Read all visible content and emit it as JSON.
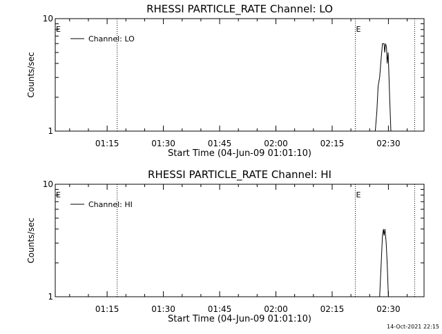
{
  "footer": {
    "timestamp": "14-Oct-2021 22:15"
  },
  "chart_data": [
    {
      "type": "line",
      "title": "RHESSI PARTICLE_RATE Channel: LO",
      "xlabel": "Start Time (04-Jun-09 01:01:10)",
      "ylabel": "Counts/sec",
      "y_scale": "log",
      "ylim": [
        1,
        10
      ],
      "xlim": [
        "01:01:10",
        "02:39:30"
      ],
      "x_ticks": [
        "01:15",
        "01:30",
        "01:45",
        "02:00",
        "02:15",
        "02:30"
      ],
      "y_ticks": [
        "1",
        "10"
      ],
      "grid": false,
      "legend": {
        "position": "top-left",
        "entries": [
          "Channel: LO"
        ]
      },
      "markers": [
        {
          "label": "E",
          "time": "01:01:10",
          "style": "none"
        },
        {
          "label": "",
          "time": "01:17:40",
          "style": "dotted"
        },
        {
          "label": "E",
          "time": "02:21:10",
          "style": "dotted"
        },
        {
          "label": "",
          "time": "02:37:00",
          "style": "dotted"
        }
      ],
      "series": [
        {
          "name": "Channel: LO",
          "points": [
            [
              "02:26:30",
              1.0
            ],
            [
              "02:26:55",
              1.5
            ],
            [
              "02:27:15",
              2.5
            ],
            [
              "02:27:40",
              3.0
            ],
            [
              "02:28:05",
              4.5
            ],
            [
              "02:28:25",
              6.0
            ],
            [
              "02:28:50",
              6.0
            ],
            [
              "02:29:00",
              5.0
            ],
            [
              "02:29:15",
              6.0
            ],
            [
              "02:29:30",
              5.5
            ],
            [
              "02:29:40",
              4.0
            ],
            [
              "02:29:55",
              5.0
            ],
            [
              "02:30:05",
              3.5
            ],
            [
              "02:30:20",
              2.0
            ],
            [
              "02:30:40",
              1.0
            ]
          ]
        }
      ]
    },
    {
      "type": "line",
      "title": "RHESSI PARTICLE_RATE Channel: HI",
      "xlabel": "Start Time (04-Jun-09 01:01:10)",
      "ylabel": "Counts/sec",
      "y_scale": "log",
      "ylim": [
        1,
        10
      ],
      "xlim": [
        "01:01:10",
        "02:39:30"
      ],
      "x_ticks": [
        "01:15",
        "01:30",
        "01:45",
        "02:00",
        "02:15",
        "02:30"
      ],
      "y_ticks": [
        "1",
        "10"
      ],
      "grid": false,
      "legend": {
        "position": "top-left",
        "entries": [
          "Channel: HI"
        ]
      },
      "markers": [
        {
          "label": "E",
          "time": "01:01:10",
          "style": "none"
        },
        {
          "label": "",
          "time": "01:17:40",
          "style": "dotted"
        },
        {
          "label": "E",
          "time": "02:21:10",
          "style": "dotted"
        },
        {
          "label": "",
          "time": "02:37:00",
          "style": "dotted"
        }
      ],
      "series": [
        {
          "name": "Channel: HI",
          "points": [
            [
              "02:27:40",
              1.0
            ],
            [
              "02:28:05",
              2.0
            ],
            [
              "02:28:25",
              3.5
            ],
            [
              "02:28:40",
              4.0
            ],
            [
              "02:28:50",
              3.5
            ],
            [
              "02:29:05",
              4.0
            ],
            [
              "02:29:25",
              3.0
            ],
            [
              "02:29:40",
              2.0
            ],
            [
              "02:30:00",
              1.0
            ]
          ]
        }
      ]
    }
  ]
}
